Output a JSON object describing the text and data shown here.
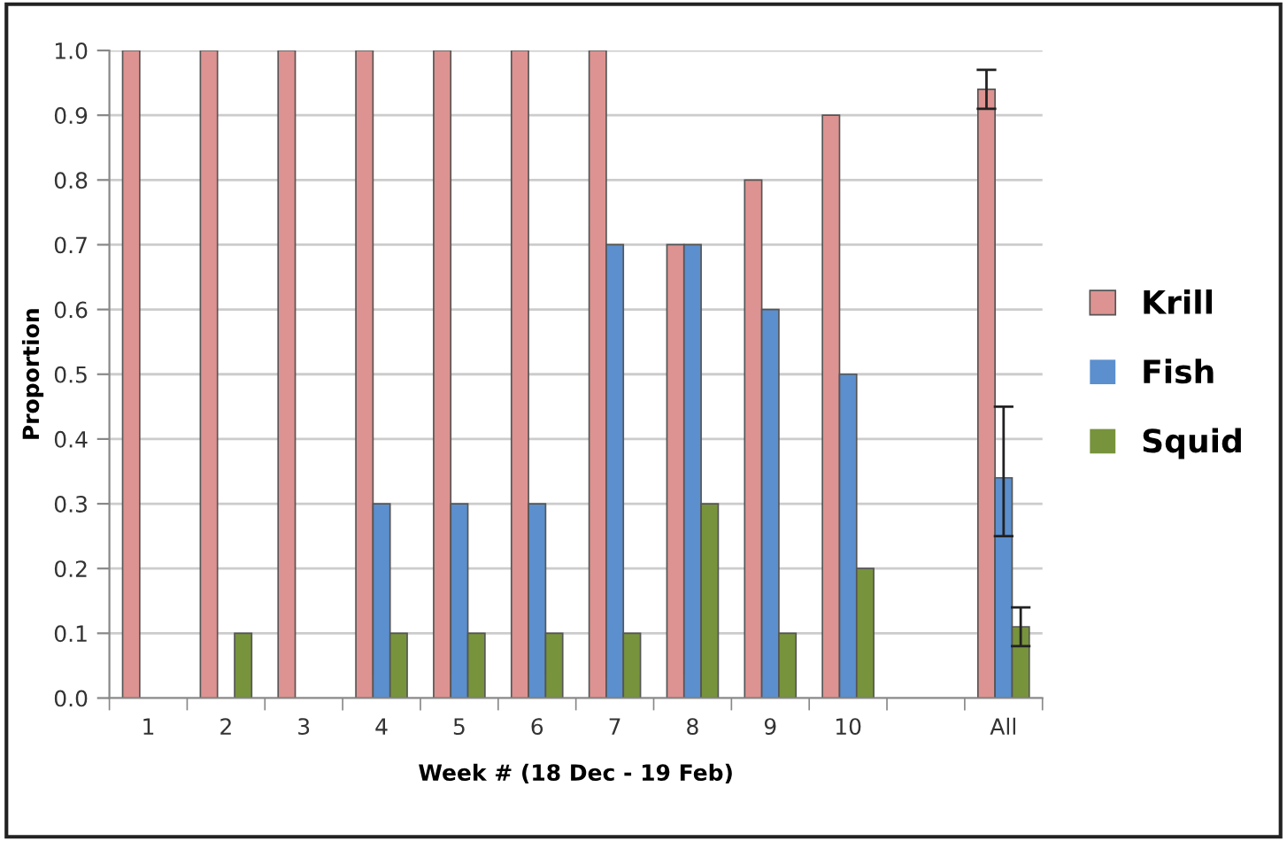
{
  "chart_data": {
    "type": "bar",
    "xlabel": "Week # (18 Dec - 19 Feb)",
    "ylabel": "Proportion",
    "categories": [
      "1",
      "2",
      "3",
      "4",
      "5",
      "6",
      "7",
      "8",
      "9",
      "10",
      null,
      "All"
    ],
    "series": [
      {
        "name": "Krill",
        "color": "#dd9391",
        "values": [
          1.0,
          1.0,
          1.0,
          1.0,
          1.0,
          1.0,
          1.0,
          0.7,
          0.8,
          0.9,
          null,
          0.94
        ],
        "errors": [
          null,
          null,
          null,
          null,
          null,
          null,
          null,
          null,
          null,
          null,
          null,
          [
            0.91,
            0.97
          ]
        ]
      },
      {
        "name": "Fish",
        "color": "#5b8fce",
        "values": [
          0,
          0,
          0,
          0.3,
          0.3,
          0.3,
          0.7,
          0.7,
          0.6,
          0.5,
          null,
          0.34
        ],
        "errors": [
          null,
          null,
          null,
          null,
          null,
          null,
          null,
          null,
          null,
          null,
          null,
          [
            0.25,
            0.45
          ]
        ]
      },
      {
        "name": "Squid",
        "color": "#77933c",
        "values": [
          0,
          0.1,
          0,
          0.1,
          0.1,
          0.1,
          0.1,
          0.3,
          0.1,
          0.2,
          null,
          0.11
        ],
        "errors": [
          null,
          null,
          null,
          null,
          null,
          null,
          null,
          null,
          null,
          null,
          null,
          [
            0.08,
            0.14
          ]
        ]
      }
    ],
    "ylim": [
      0,
      1.0
    ],
    "yticks": [
      {
        "value": 0,
        "label": "0.0"
      },
      {
        "value": 0.1,
        "label": "0.1"
      },
      {
        "value": 0.2,
        "label": "0.2"
      },
      {
        "value": 0.3,
        "label": "0.3"
      },
      {
        "value": 0.4,
        "label": "0.4"
      },
      {
        "value": 0.5,
        "label": "0.5"
      },
      {
        "value": 0.6,
        "label": "0.6"
      },
      {
        "value": 0.7,
        "label": "0.7"
      },
      {
        "value": 0.8,
        "label": "0.8"
      },
      {
        "value": 0.9,
        "label": "0.9"
      },
      {
        "value": 1.0,
        "label": "1.0"
      }
    ],
    "grid": "y",
    "legend": "right"
  }
}
